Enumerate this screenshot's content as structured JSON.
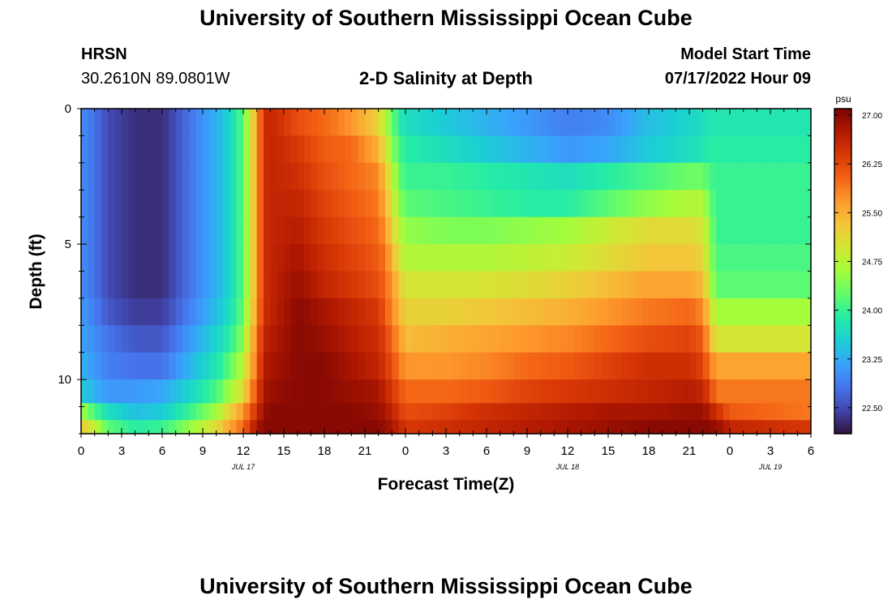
{
  "header": {
    "title": "University of Southern Mississippi Ocean Cube",
    "station_code": "HRSN",
    "coords": "30.2610N  89.0801W",
    "plot_subtitle": "2-D Salinity at Depth",
    "model_start_label": "Model Start Time",
    "model_start_value": "07/17/2022 Hour 09"
  },
  "footer": {
    "title": "University of Southern Mississippi Ocean Cube"
  },
  "chart_data": {
    "type": "heatmap",
    "title": "2-D Salinity at Depth",
    "xlabel": "Forecast Time(Z)",
    "ylabel": "Depth (ft)",
    "x_hours_range": [
      0,
      54
    ],
    "x_ticks": [
      {
        "hour": 0,
        "label": "0"
      },
      {
        "hour": 3,
        "label": "3"
      },
      {
        "hour": 6,
        "label": "6"
      },
      {
        "hour": 9,
        "label": "9"
      },
      {
        "hour": 12,
        "label": "12"
      },
      {
        "hour": 15,
        "label": "15"
      },
      {
        "hour": 18,
        "label": "18"
      },
      {
        "hour": 21,
        "label": "21"
      },
      {
        "hour": 24,
        "label": "0"
      },
      {
        "hour": 27,
        "label": "3"
      },
      {
        "hour": 30,
        "label": "6"
      },
      {
        "hour": 33,
        "label": "9"
      },
      {
        "hour": 36,
        "label": "12"
      },
      {
        "hour": 39,
        "label": "15"
      },
      {
        "hour": 42,
        "label": "18"
      },
      {
        "hour": 45,
        "label": "21"
      },
      {
        "hour": 48,
        "label": "0"
      },
      {
        "hour": 51,
        "label": "3"
      },
      {
        "hour": 54,
        "label": "6"
      }
    ],
    "date_labels": [
      {
        "hour": 12,
        "label": "JUL 17"
      },
      {
        "hour": 36,
        "label": "JUL 18"
      },
      {
        "hour": 51,
        "label": "JUL 19"
      }
    ],
    "y_range_ft": [
      0,
      12
    ],
    "y_ticks": [
      {
        "depth": 0,
        "label": "0"
      },
      {
        "depth": 5,
        "label": "5"
      },
      {
        "depth": 10,
        "label": "10"
      }
    ],
    "colorbar": {
      "unit": "psu",
      "range": [
        22.1,
        27.1
      ],
      "ticks": [
        "22.50",
        "23.25",
        "24.00",
        "24.75",
        "25.50",
        "26.25",
        "27.00"
      ],
      "colors": [
        "#30123b",
        "#4145ab",
        "#4675ed",
        "#39a2fc",
        "#1bcfd4",
        "#24eca6",
        "#61fc6c",
        "#a4fc3b",
        "#d1e834",
        "#f3c63a",
        "#fe9b2d",
        "#f36315",
        "#d93806",
        "#b11901",
        "#7a0402"
      ]
    },
    "depth_layers_ft": [
      0.5,
      1.5,
      2.5,
      3.5,
      4.5,
      5.5,
      6.5,
      7.5,
      8.5,
      9.5,
      10.5,
      11.25,
      11.75
    ],
    "profile_description": "Salinity (psu) per depth layer at key forecast hours; linearly interpolated between hours",
    "profile_hours": [
      0,
      1,
      2,
      4,
      6,
      8,
      10,
      11,
      12,
      12.5,
      13,
      13.5,
      14,
      16,
      18,
      20,
      22,
      22.5,
      23,
      23.5,
      24,
      27,
      30,
      33,
      36,
      39,
      42,
      45,
      46,
      46.5,
      47,
      47.5,
      48,
      51,
      54
    ],
    "profiles": [
      [
        23.0,
        22.8,
        22.5,
        22.3,
        22.3,
        22.8,
        23.3,
        23.6,
        24.2,
        24.9,
        25.6,
        26.5,
        26.6,
        26.2,
        26.0,
        25.7,
        25.2,
        24.7,
        24.3,
        23.9,
        23.7,
        23.5,
        23.3,
        23.1,
        22.9,
        23.0,
        23.4,
        23.6,
        23.7,
        23.8,
        23.8,
        23.8,
        23.8,
        23.8,
        23.8
      ],
      [
        23.0,
        22.8,
        22.5,
        22.3,
        22.3,
        22.8,
        23.3,
        23.6,
        24.2,
        24.9,
        25.6,
        26.5,
        26.6,
        26.4,
        26.1,
        26.0,
        25.5,
        25.0,
        24.5,
        24.1,
        23.9,
        23.7,
        23.5,
        23.3,
        23.1,
        23.2,
        23.5,
        23.7,
        23.8,
        23.9,
        23.9,
        23.9,
        23.9,
        23.9,
        23.9
      ],
      [
        23.0,
        22.8,
        22.5,
        22.3,
        22.3,
        22.8,
        23.3,
        23.6,
        24.2,
        24.9,
        25.6,
        26.5,
        26.6,
        26.5,
        26.2,
        26.0,
        25.8,
        25.3,
        24.8,
        24.3,
        24.0,
        24.0,
        23.9,
        23.8,
        23.7,
        23.9,
        24.1,
        24.3,
        24.3,
        24.1,
        24.0,
        24.0,
        24.0,
        24.0,
        24.0
      ],
      [
        23.0,
        22.8,
        22.5,
        22.3,
        22.3,
        22.8,
        23.3,
        23.6,
        24.2,
        24.9,
        25.6,
        26.5,
        26.6,
        26.6,
        26.3,
        26.1,
        25.9,
        25.5,
        25.0,
        24.5,
        24.2,
        24.1,
        24.0,
        23.9,
        23.9,
        24.2,
        24.5,
        24.7,
        24.7,
        24.3,
        24.0,
        24.0,
        24.0,
        24.0,
        24.0
      ],
      [
        23.0,
        22.8,
        22.5,
        22.3,
        22.3,
        22.8,
        23.3,
        23.6,
        24.2,
        24.9,
        25.6,
        26.5,
        26.6,
        26.7,
        26.4,
        26.2,
        26.0,
        25.7,
        25.2,
        24.8,
        24.5,
        24.4,
        24.4,
        24.5,
        24.6,
        24.9,
        25.1,
        25.1,
        25.0,
        24.5,
        24.0,
        24.0,
        24.0,
        24.0,
        24.0
      ],
      [
        23.0,
        22.8,
        22.5,
        22.3,
        22.3,
        22.8,
        23.3,
        23.6,
        24.2,
        24.9,
        25.6,
        26.5,
        26.6,
        26.8,
        26.5,
        26.3,
        26.1,
        25.9,
        25.5,
        25.0,
        24.7,
        24.7,
        24.7,
        24.8,
        24.9,
        25.1,
        25.3,
        25.3,
        25.2,
        24.6,
        24.1,
        24.1,
        24.1,
        24.1,
        24.1
      ],
      [
        23.0,
        22.8,
        22.5,
        22.3,
        22.3,
        22.8,
        23.3,
        23.6,
        24.2,
        24.9,
        25.6,
        26.5,
        26.6,
        26.9,
        26.6,
        26.4,
        26.2,
        26.0,
        25.7,
        25.3,
        25.0,
        25.0,
        25.0,
        25.1,
        25.2,
        25.4,
        25.6,
        25.6,
        25.4,
        24.8,
        24.2,
        24.2,
        24.2,
        24.2,
        24.2
      ],
      [
        23.1,
        22.9,
        22.6,
        22.4,
        22.4,
        22.9,
        23.4,
        23.7,
        24.3,
        25.0,
        25.7,
        26.5,
        26.6,
        27.0,
        26.8,
        26.6,
        26.4,
        26.1,
        25.8,
        25.5,
        25.2,
        25.2,
        25.3,
        25.4,
        25.5,
        25.7,
        25.9,
        26.0,
        25.8,
        25.2,
        24.6,
        24.6,
        24.6,
        24.6,
        24.6
      ],
      [
        23.2,
        23.0,
        22.8,
        22.6,
        22.6,
        23.1,
        23.6,
        23.9,
        24.5,
        25.2,
        25.9,
        26.6,
        26.7,
        27.0,
        26.9,
        26.7,
        26.5,
        26.3,
        26.0,
        25.7,
        25.4,
        25.5,
        25.6,
        25.7,
        25.8,
        26.0,
        26.2,
        26.3,
        26.1,
        25.5,
        25.0,
        25.0,
        25.0,
        25.0,
        25.0
      ],
      [
        23.3,
        23.1,
        22.9,
        22.8,
        22.8,
        23.3,
        23.8,
        24.2,
        24.8,
        25.4,
        26.0,
        26.7,
        26.8,
        27.0,
        27.0,
        26.8,
        26.6,
        26.4,
        26.2,
        25.9,
        25.7,
        25.7,
        25.8,
        26.0,
        26.1,
        26.3,
        26.5,
        26.5,
        26.3,
        25.9,
        25.6,
        25.6,
        25.6,
        25.6,
        25.6
      ],
      [
        23.5,
        23.3,
        23.1,
        23.1,
        23.2,
        23.6,
        24.1,
        24.6,
        25.1,
        25.7,
        26.2,
        26.8,
        26.9,
        27.0,
        27.0,
        26.9,
        26.8,
        26.6,
        26.4,
        26.2,
        26.0,
        26.0,
        26.1,
        26.3,
        26.4,
        26.5,
        26.6,
        26.7,
        26.6,
        26.3,
        25.9,
        25.9,
        25.9,
        25.9,
        25.9
      ],
      [
        24.6,
        24.1,
        23.7,
        23.4,
        23.5,
        24.0,
        24.6,
        25.2,
        25.7,
        26.1,
        26.5,
        26.9,
        27.0,
        27.0,
        27.0,
        27.0,
        26.9,
        26.8,
        26.6,
        26.4,
        26.2,
        26.3,
        26.5,
        26.6,
        26.7,
        26.8,
        26.8,
        26.9,
        26.9,
        26.7,
        26.5,
        26.3,
        26.1,
        26.0,
        25.9
      ],
      [
        25.3,
        24.8,
        24.2,
        23.9,
        24.0,
        24.5,
        25.1,
        25.6,
        26.0,
        26.4,
        26.8,
        27.0,
        27.0,
        27.0,
        27.0,
        27.0,
        27.0,
        26.9,
        26.8,
        26.6,
        26.4,
        26.5,
        26.6,
        26.7,
        26.8,
        26.9,
        27.0,
        27.0,
        27.0,
        27.0,
        26.9,
        26.8,
        26.6,
        26.5,
        26.4
      ]
    ]
  }
}
